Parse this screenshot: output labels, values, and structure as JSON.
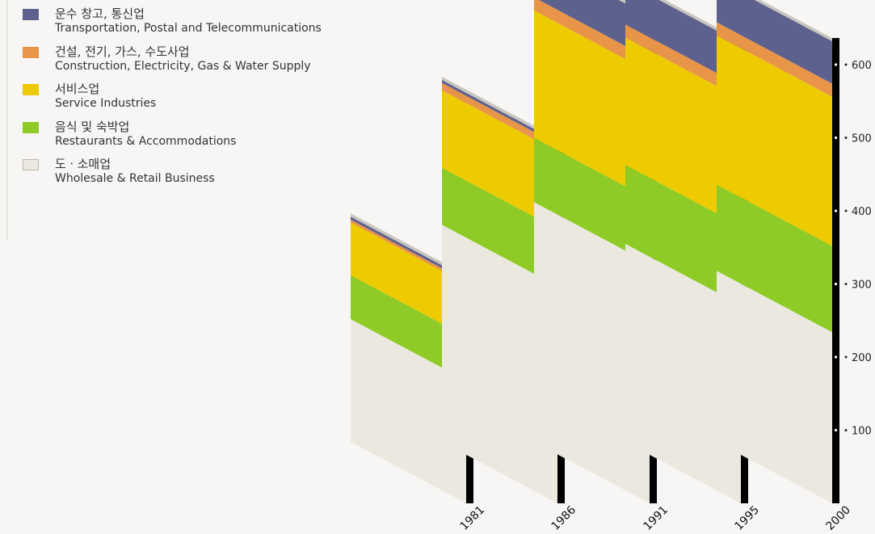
{
  "legend": {
    "items": [
      {
        "ko": "운수 창고, 통신업",
        "en": "Transportation, Postal and Telecommunications",
        "color": "#5c618e"
      },
      {
        "ko": "건설, 전기, 가스, 수도사업",
        "en": "Construction, Electricity, Gas & Water Supply",
        "color": "#e8954a"
      },
      {
        "ko": "서비스업",
        "en": "Service Industries",
        "color": "#eecb00"
      },
      {
        "ko": "음식 및 숙박업",
        "en": "Restaurants & Accommodations",
        "color": "#8ecb26"
      },
      {
        "ko": "도ㆍ소매업",
        "en": "Wholesale & Retail Business",
        "color": "#ebe9df"
      }
    ]
  },
  "chart_data": {
    "type": "bar",
    "stacked": true,
    "categories": [
      "1981",
      "1986",
      "1991",
      "1995",
      "2000"
    ],
    "series": [
      {
        "name": "도ㆍ소매업 Wholesale & Retail Business",
        "color": "#ebe9df",
        "values": [
          168,
          297,
          328,
          271,
          234
        ]
      },
      {
        "name": "음식 및 숙박업 Restaurants & Accommodations",
        "color": "#8ecb26",
        "values": [
          60,
          78,
          88,
          108,
          118
        ]
      },
      {
        "name": "서비스업 Service Industries",
        "color": "#eecb00",
        "values": [
          72,
          106,
          174,
          174,
          204
        ]
      },
      {
        "name": "건설, 전기, 가스, 수도사업 Construction, Electricity, Gas & Water Supply",
        "color": "#e8954a",
        "values": [
          4,
          10,
          18,
          18,
          18
        ]
      },
      {
        "name": "운수 창고, 통신업 Transportation, Postal and Telecommunications",
        "color": "#5c618e",
        "values": [
          4,
          4,
          58,
          58,
          58
        ]
      }
    ],
    "axis": {
      "ticks": [
        100,
        200,
        300,
        400,
        500,
        600
      ],
      "ylim": [
        0,
        700
      ]
    },
    "legend_position": "top-left"
  }
}
